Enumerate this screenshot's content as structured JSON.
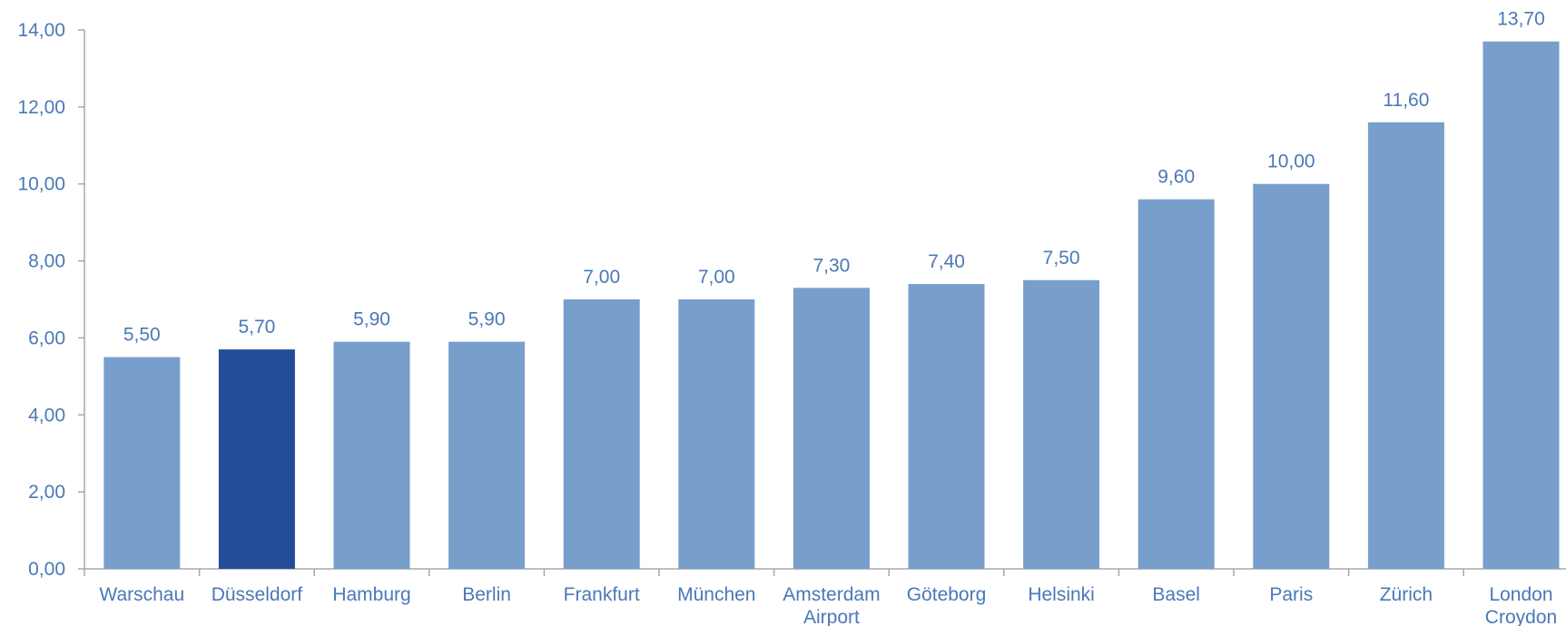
{
  "chart_data": {
    "type": "bar",
    "title": "",
    "xlabel": "",
    "ylabel": "",
    "categories": [
      [
        "Warschau"
      ],
      [
        "Düsseldorf"
      ],
      [
        "Hamburg"
      ],
      [
        "Berlin"
      ],
      [
        "Frankfurt"
      ],
      [
        "München"
      ],
      [
        "Amsterdam",
        "Airport"
      ],
      [
        "Göteborg"
      ],
      [
        "Helsinki"
      ],
      [
        "Basel"
      ],
      [
        "Paris"
      ],
      [
        "Zürich"
      ],
      [
        "London",
        "Croydon"
      ]
    ],
    "values": [
      5.5,
      5.7,
      5.9,
      5.9,
      7.0,
      7.0,
      7.3,
      7.4,
      7.5,
      9.6,
      10.0,
      11.6,
      13.7
    ],
    "value_labels": [
      "5,50",
      "5,70",
      "5,90",
      "5,90",
      "7,00",
      "7,00",
      "7,30",
      "7,40",
      "7,50",
      "9,60",
      "10,00",
      "11,60",
      "13,70"
    ],
    "ylim": [
      0,
      14
    ],
    "y_ticks": [
      0,
      2,
      4,
      6,
      8,
      10,
      12,
      14
    ],
    "y_tick_labels": [
      "0,00",
      "2,00",
      "4,00",
      "6,00",
      "8,00",
      "10,00",
      "12,00",
      "14,00"
    ],
    "highlight_index": 1,
    "grid": false,
    "colors": {
      "bar": "#789FCB",
      "highlight": "#244C99",
      "text": "#4A78B8",
      "axis": "#A8A8A8"
    }
  }
}
